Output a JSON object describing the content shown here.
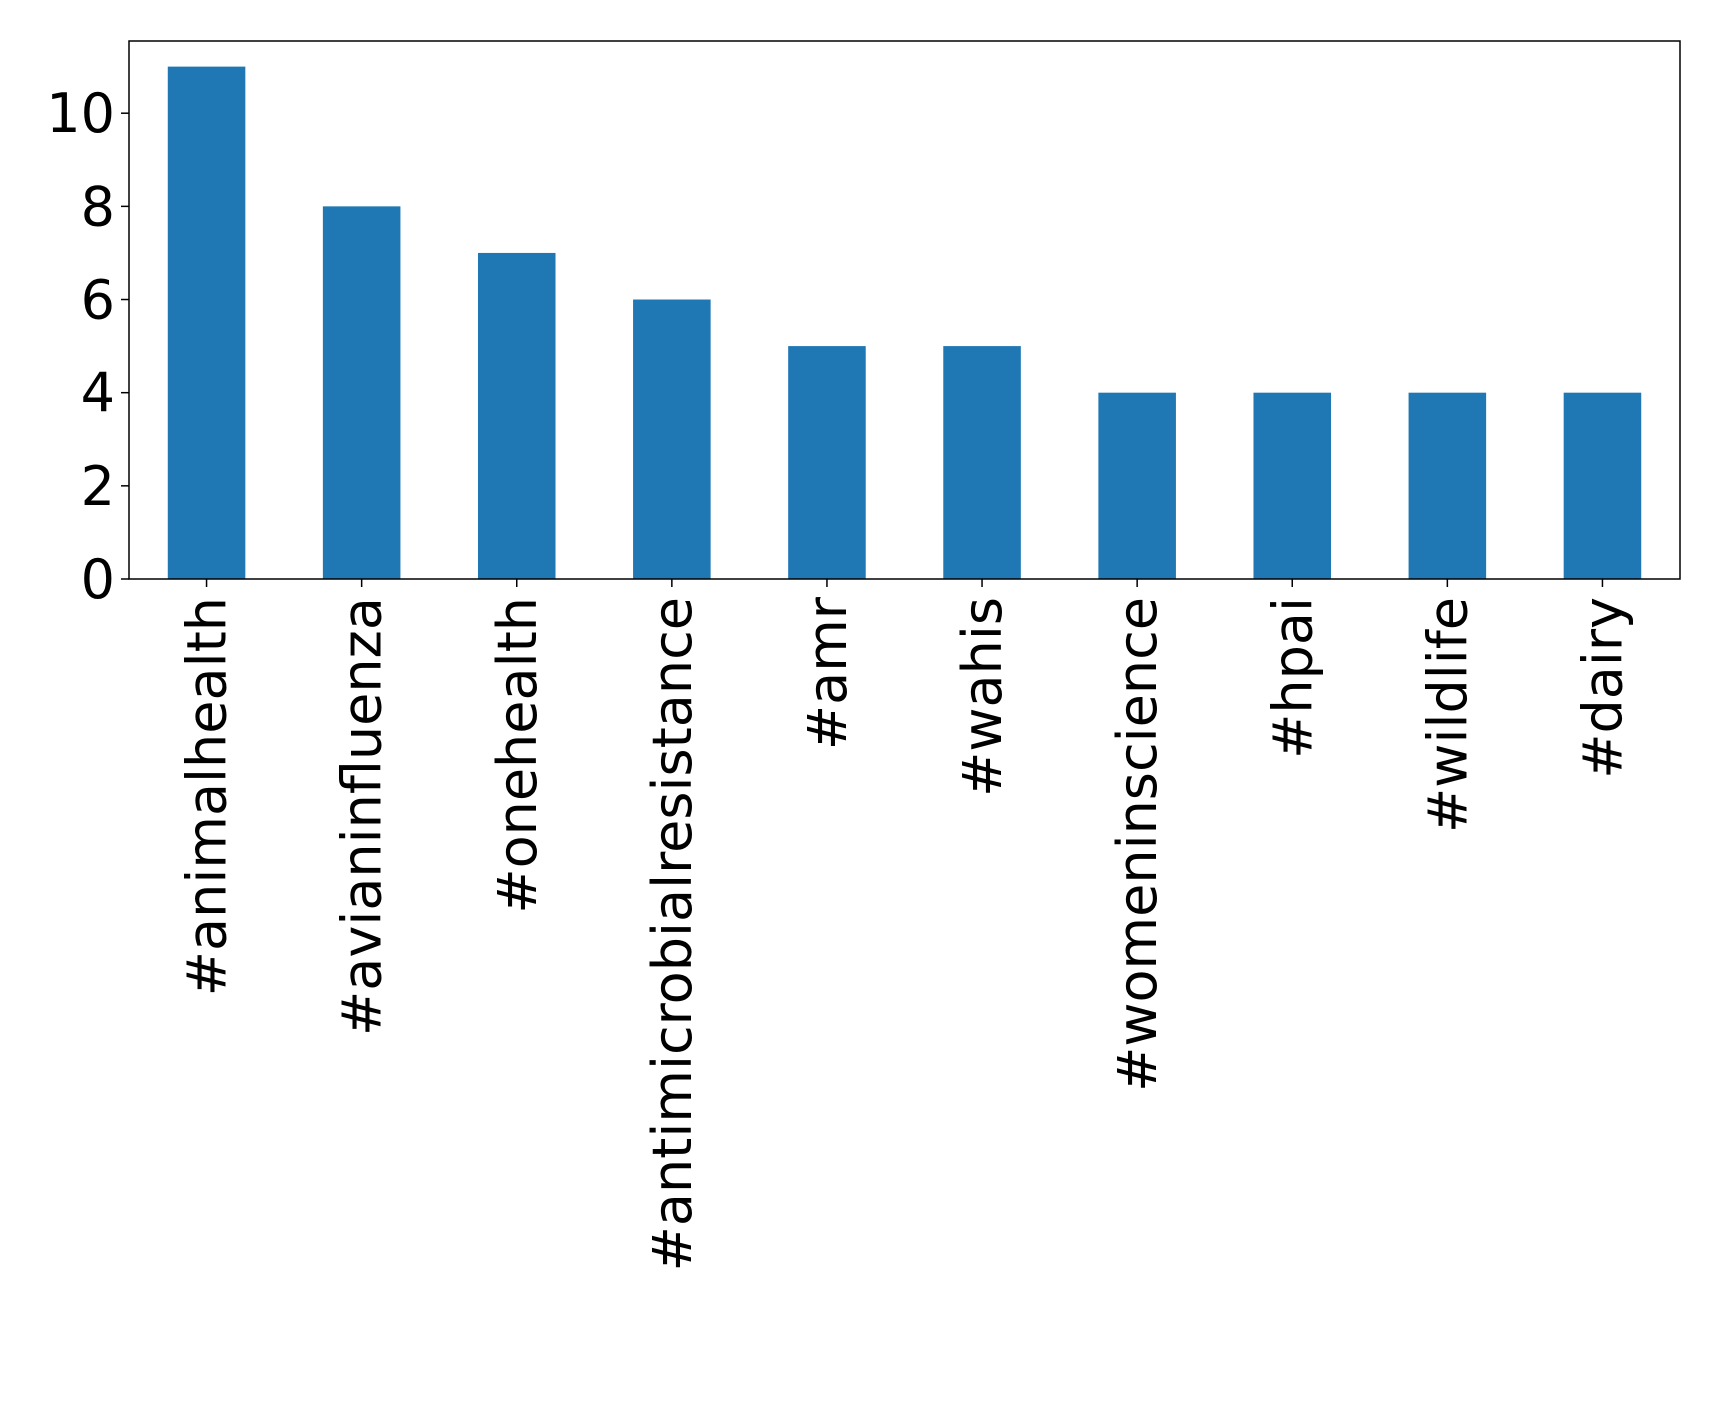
{
  "chart_data": {
    "type": "bar",
    "categories": [
      "#animalhealth",
      "#avianinfluenza",
      "#onehealth",
      "#antimicrobialresistance",
      "#amr",
      "#wahis",
      "#womeninscience",
      "#hpai",
      "#wildlife",
      "#dairy"
    ],
    "values": [
      11,
      8,
      7,
      6,
      5,
      5,
      4,
      4,
      4,
      4
    ],
    "color": "#1f77b4",
    "ylim": [
      0,
      11.55
    ],
    "yticks": [
      0,
      2,
      4,
      6,
      8,
      10
    ],
    "grid": false
  }
}
